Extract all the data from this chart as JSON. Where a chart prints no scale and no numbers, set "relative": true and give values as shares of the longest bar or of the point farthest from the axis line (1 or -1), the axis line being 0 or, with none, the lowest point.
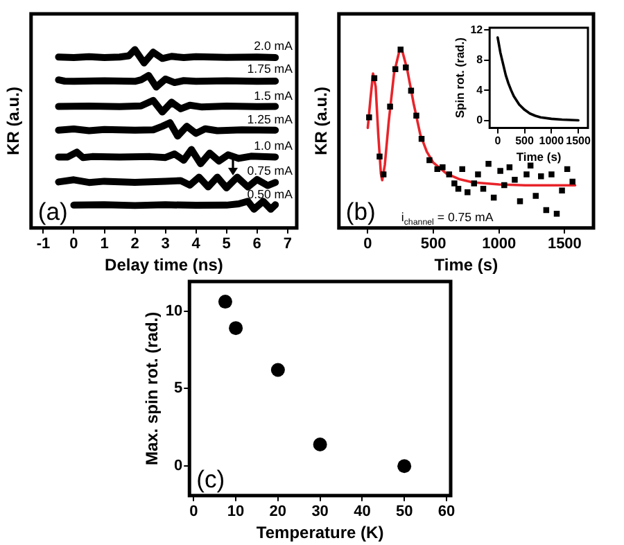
{
  "chart_data": [
    {
      "type": "line",
      "relative": true,
      "xlabel": "Delay time (ns)",
      "ylabel": "KR (a.u.)",
      "xlim": [
        -1.4,
        7.3
      ],
      "xticks": [
        -1,
        0,
        1,
        2,
        3,
        4,
        5,
        6,
        7
      ],
      "annotations": [
        "(a)"
      ],
      "line_style": "solid",
      "series": [
        {
          "name": "2.0 mA",
          "color": "#000000",
          "x": [
            -0.5,
            0,
            0.5,
            1,
            1.5,
            1.8,
            2.0,
            2.3,
            2.6,
            2.9,
            3.2,
            3.6,
            4,
            5,
            6,
            6.6
          ],
          "values": [
            0.958,
            0.955,
            0.96,
            0.955,
            0.958,
            0.965,
            1.0,
            0.925,
            0.985,
            0.95,
            0.962,
            0.955,
            0.96,
            0.956,
            0.958,
            0.955
          ]
        },
        {
          "name": "1.75 mA",
          "color": "#000000",
          "x": [
            -0.5,
            -0.3,
            0,
            1,
            2,
            2.2,
            2.45,
            2.7,
            3.0,
            3.3,
            3.6,
            4,
            5,
            6,
            6.6
          ],
          "values": [
            0.83,
            0.823,
            0.822,
            0.825,
            0.822,
            0.83,
            0.855,
            0.79,
            0.835,
            0.815,
            0.826,
            0.822,
            0.825,
            0.822,
            0.823
          ]
        },
        {
          "name": "1.5 mA",
          "color": "#000000",
          "x": [
            -0.5,
            0.5,
            1.5,
            2.2,
            2.6,
            2.9,
            3.2,
            3.5,
            3.8,
            4.2,
            5,
            6,
            6.6
          ],
          "values": [
            0.681,
            0.683,
            0.68,
            0.684,
            0.715,
            0.65,
            0.705,
            0.668,
            0.688,
            0.678,
            0.683,
            0.68,
            0.681
          ]
        },
        {
          "name": "1.25 mA",
          "color": "#000000",
          "x": [
            -0.5,
            0,
            0.5,
            1,
            2,
            2.6,
            2.9,
            3.15,
            3.4,
            3.7,
            4.0,
            4.3,
            4.7,
            5.5,
            6.6
          ],
          "values": [
            0.548,
            0.555,
            0.545,
            0.552,
            0.548,
            0.55,
            0.57,
            0.59,
            0.515,
            0.57,
            0.53,
            0.556,
            0.545,
            0.55,
            0.548
          ]
        },
        {
          "name": "1.0 mA",
          "color": "#000000",
          "x": [
            -0.5,
            -0.2,
            0.1,
            0.3,
            0.6,
            1.5,
            2.5,
            3.0,
            3.3,
            3.6,
            3.85,
            4.15,
            4.45,
            4.75,
            5.05,
            5.4,
            5.8,
            6.6
          ],
          "values": [
            0.398,
            0.398,
            0.425,
            0.395,
            0.4,
            0.398,
            0.4,
            0.395,
            0.415,
            0.38,
            0.44,
            0.36,
            0.42,
            0.375,
            0.41,
            0.39,
            0.402,
            0.398
          ]
        },
        {
          "name": "0.75 mA",
          "color": "#000000",
          "x": [
            -0.5,
            0,
            0.5,
            1,
            2,
            3,
            3.5,
            3.8,
            4.1,
            4.4,
            4.7,
            5.0,
            5.35,
            5.7,
            6.0,
            6.35,
            6.6
          ],
          "values": [
            0.258,
            0.27,
            0.255,
            0.262,
            0.256,
            0.262,
            0.265,
            0.24,
            0.285,
            0.23,
            0.285,
            0.225,
            0.285,
            0.23,
            0.272,
            0.238,
            0.255
          ]
        },
        {
          "name": "0.50 mA",
          "color": "#000000",
          "x": [
            0,
            1,
            2,
            3,
            4,
            5,
            5.4,
            5.7,
            5.9,
            6.2,
            6.45,
            6.6
          ],
          "values": [
            0.128,
            0.13,
            0.126,
            0.13,
            0.127,
            0.128,
            0.135,
            0.15,
            0.105,
            0.15,
            0.105,
            0.13
          ]
        }
      ]
    },
    {
      "type": "scatter",
      "relative": true,
      "xlabel": "Time (s)",
      "ylabel": "KR (a.u.)",
      "xlim": [
        -220,
        1720
      ],
      "xticks": [
        0,
        500,
        1000,
        1500
      ],
      "annotations": [
        "(b)",
        "i$_{channel}$ = 0.75 mA"
      ],
      "series": [
        {
          "marker": "square",
          "color": "#000000",
          "x": [
            10,
            50,
            90,
            120,
            170,
            210,
            250,
            290,
            330,
            370,
            410,
            470,
            530,
            570,
            620,
            660,
            690,
            720,
            760,
            810,
            840,
            880,
            920,
            960,
            1010,
            1040,
            1080,
            1120,
            1160,
            1210,
            1240,
            1280,
            1320,
            1360,
            1400,
            1440,
            1480,
            1520,
            1560
          ],
          "values": [
            0.62,
            0.84,
            0.4,
            0.3,
            0.68,
            0.89,
            1.0,
            0.9,
            0.77,
            0.63,
            0.5,
            0.38,
            0.33,
            0.34,
            0.3,
            0.25,
            0.22,
            0.33,
            0.2,
            0.25,
            0.3,
            0.22,
            0.36,
            0.17,
            0.32,
            0.24,
            0.34,
            0.27,
            0.15,
            0.3,
            0.35,
            0.18,
            0.29,
            0.1,
            0.3,
            0.08,
            0.21,
            0.33,
            0.26
          ]
        },
        {
          "type": "line",
          "color": "#e8242a",
          "x": [
            0,
            20,
            40,
            60,
            80,
            100,
            110,
            130,
            160,
            200,
            240,
            260,
            300,
            350,
            400,
            450,
            500,
            600,
            700,
            800,
            1000,
            1200,
            1580
          ],
          "values": [
            0.561,
            0.72,
            0.866,
            0.793,
            0.524,
            0.305,
            0.268,
            0.354,
            0.598,
            0.866,
            0.99,
            1.0,
            0.89,
            0.695,
            0.524,
            0.427,
            0.366,
            0.305,
            0.273,
            0.256,
            0.244,
            0.239,
            0.239
          ]
        }
      ]
    },
    {
      "type": "line",
      "xlabel": "Time (s)",
      "ylabel": "Spin rot. (rad.)",
      "xlim": [
        -150,
        1680
      ],
      "xticks": [
        0,
        500,
        1000,
        1500
      ],
      "ylim": [
        -1,
        12.3
      ],
      "yticks": [
        0,
        4,
        8,
        12
      ],
      "x": [
        0,
        50,
        100,
        150,
        200,
        250,
        300,
        400,
        500,
        600,
        700,
        800,
        1000,
        1200,
        1500
      ],
      "values": [
        11,
        9,
        7.5,
        6,
        4.9,
        4,
        3.2,
        2.1,
        1.4,
        0.9,
        0.6,
        0.4,
        0.2,
        0.1,
        0
      ],
      "color": "#000000"
    },
    {
      "type": "scatter",
      "marker": "circle",
      "xlabel": "Temperature (K)",
      "ylabel": "Max. spin rot. (rad.)",
      "xlim": [
        -1,
        61
      ],
      "xticks": [
        0,
        10,
        20,
        30,
        40,
        50,
        60
      ],
      "ylim": [
        -1.9,
        11.9
      ],
      "yticks": [
        0,
        5,
        10
      ],
      "annotations": [
        "(c)"
      ],
      "x": [
        7.5,
        10,
        20,
        30,
        50
      ],
      "values": [
        10.6,
        8.9,
        6.2,
        1.4,
        0
      ],
      "color": "#000000"
    }
  ]
}
